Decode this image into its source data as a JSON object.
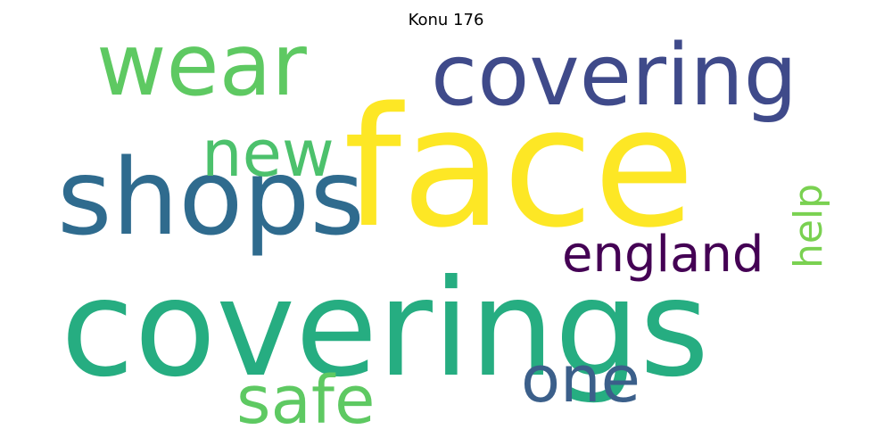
{
  "title": "Konu 176",
  "words": [
    {
      "text": "face",
      "color": "#fde725",
      "rotated": false
    },
    {
      "text": "coverings",
      "color": "#26ad81",
      "rotated": false
    },
    {
      "text": "covering",
      "color": "#3f4a8a",
      "rotated": false
    },
    {
      "text": "shops",
      "color": "#2f6b8e",
      "rotated": false
    },
    {
      "text": "wear",
      "color": "#5ec962",
      "rotated": false
    },
    {
      "text": "new",
      "color": "#4cc16c",
      "rotated": false
    },
    {
      "text": "england",
      "color": "#440154",
      "rotated": false
    },
    {
      "text": "one",
      "color": "#3b5f8a",
      "rotated": false
    },
    {
      "text": "safe",
      "color": "#5ec962",
      "rotated": false
    },
    {
      "text": "help",
      "color": "#7ad151",
      "rotated": true
    }
  ]
}
